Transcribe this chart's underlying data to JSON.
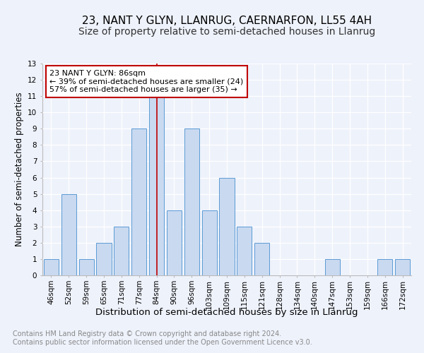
{
  "title": "23, NANT Y GLYN, LLANRUG, CAERNARFON, LL55 4AH",
  "subtitle": "Size of property relative to semi-detached houses in Llanrug",
  "xlabel": "Distribution of semi-detached houses by size in Llanrug",
  "ylabel": "Number of semi-detached properties",
  "categories": [
    "46sqm",
    "52sqm",
    "59sqm",
    "65sqm",
    "71sqm",
    "77sqm",
    "84sqm",
    "90sqm",
    "96sqm",
    "103sqm",
    "109sqm",
    "115sqm",
    "121sqm",
    "128sqm",
    "134sqm",
    "140sqm",
    "147sqm",
    "153sqm",
    "159sqm",
    "166sqm",
    "172sqm"
  ],
  "values": [
    1,
    5,
    1,
    2,
    3,
    9,
    11,
    4,
    9,
    4,
    6,
    3,
    2,
    0,
    0,
    0,
    1,
    0,
    0,
    1,
    1
  ],
  "highlight_index": 6,
  "bar_color": "#c9d9f0",
  "bar_edge_color": "#5b9bd5",
  "highlight_line_color": "#c00000",
  "annotation_line1": "23 NANT Y GLYN: 86sqm",
  "annotation_line2": "← 39% of semi-detached houses are smaller (24)",
  "annotation_line3": "57% of semi-detached houses are larger (35) →",
  "annotation_box_edge_color": "#c00000",
  "ylim": [
    0,
    13
  ],
  "yticks": [
    0,
    1,
    2,
    3,
    4,
    5,
    6,
    7,
    8,
    9,
    10,
    11,
    12,
    13
  ],
  "footer_text": "Contains HM Land Registry data © Crown copyright and database right 2024.\nContains public sector information licensed under the Open Government Licence v3.0.",
  "title_fontsize": 11,
  "subtitle_fontsize": 10,
  "xlabel_fontsize": 9.5,
  "ylabel_fontsize": 8.5,
  "tick_fontsize": 7.5,
  "annotation_fontsize": 8,
  "footer_fontsize": 7,
  "background_color": "#eef2fb"
}
